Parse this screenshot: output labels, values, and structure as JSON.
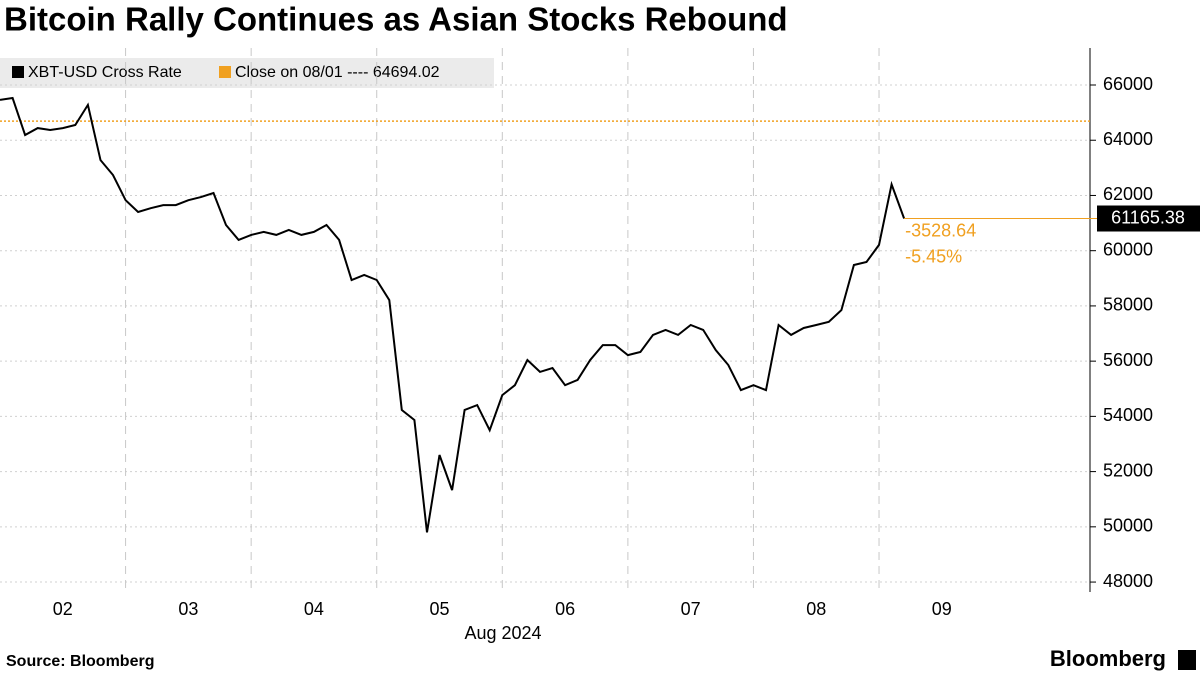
{
  "chart_data": {
    "type": "line",
    "title": "Bitcoin Rally Continues as Asian Stocks Rebound",
    "xlabel": "Aug 2024",
    "source": "Source: Bloomberg",
    "brand": "Bloomberg",
    "x": [
      2.0,
      2.1,
      2.2,
      2.3,
      2.4,
      2.5,
      2.6,
      2.7,
      2.8,
      2.9,
      3.0,
      3.1,
      3.2,
      3.3,
      3.4,
      3.5,
      3.6,
      3.7,
      3.8,
      3.9,
      4.0,
      4.1,
      4.2,
      4.3,
      4.4,
      4.5,
      4.6,
      4.7,
      4.8,
      4.9,
      5.0,
      5.1,
      5.2,
      5.3,
      5.4,
      5.5,
      5.6,
      5.7,
      5.8,
      5.9,
      6.0,
      6.1,
      6.2,
      6.3,
      6.4,
      6.5,
      6.6,
      6.7,
      6.8,
      6.9,
      7.0,
      7.1,
      7.2,
      7.3,
      7.4,
      7.5,
      7.6,
      7.7,
      7.8,
      7.9,
      8.0,
      8.1,
      8.2,
      8.3,
      8.4,
      8.5,
      8.6,
      8.7,
      8.8,
      8.9,
      9.0,
      9.1,
      9.2
    ],
    "series": [
      {
        "name": "XBT-USD Cross Rate",
        "color": "#000000",
        "values": [
          65460,
          65530,
          64190,
          64440,
          64370,
          64440,
          64550,
          65280,
          63280,
          62740,
          61830,
          61400,
          61540,
          61650,
          61650,
          61830,
          61940,
          62090,
          60930,
          60390,
          60570,
          60680,
          60570,
          60750,
          60570,
          60680,
          60930,
          60390,
          58940,
          59120,
          58940,
          58210,
          54230,
          53870,
          49800,
          52600,
          51330,
          54230,
          54410,
          53500,
          54770,
          55130,
          56040,
          55610,
          55750,
          55130,
          55320,
          56040,
          56580,
          56580,
          56220,
          56330,
          56950,
          57130,
          56950,
          57310,
          57130,
          56400,
          55860,
          54950,
          55130,
          54950,
          57310,
          56950,
          57200,
          57310,
          57420,
          57850,
          59480,
          59590,
          60210,
          62400,
          61165.38
        ]
      }
    ],
    "reference": {
      "name": "Close on 08/01 ----",
      "value": 64694.02,
      "color": "#f0a020"
    },
    "annotations": [
      "-3528.64",
      "-5.45%"
    ],
    "xlim": [
      2,
      10.68
    ],
    "xticks": [
      {
        "value": 2.5,
        "label": "02"
      },
      {
        "value": 3.5,
        "label": "03"
      },
      {
        "value": 4.5,
        "label": "04"
      },
      {
        "value": 5.5,
        "label": "05"
      },
      {
        "value": 6.5,
        "label": "06"
      },
      {
        "value": 7.5,
        "label": "07"
      },
      {
        "value": 8.5,
        "label": "08"
      },
      {
        "value": 9.5,
        "label": "09"
      }
    ],
    "xgrid": [
      3,
      4,
      5,
      6,
      7,
      8,
      9
    ],
    "ylim": [
      47640,
      67340
    ],
    "yticks": [
      48000,
      50000,
      52000,
      54000,
      56000,
      58000,
      60000,
      62000,
      64000,
      66000
    ],
    "grid": true
  }
}
